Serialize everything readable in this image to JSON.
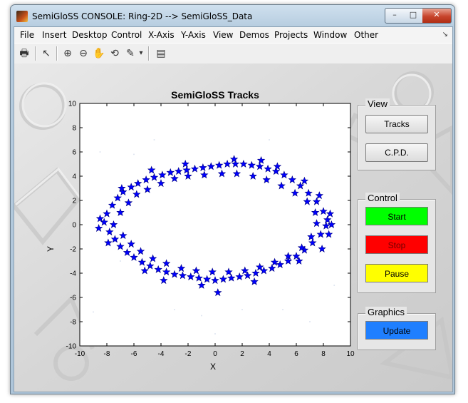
{
  "window": {
    "title": "SemiGloSS CONSOLE: Ring-2D --> SemiGloSS_Data",
    "min_label": "–",
    "max_label": "□",
    "close_label": "✕"
  },
  "menu": [
    "File",
    "Insert",
    "Desktop",
    "Control",
    "X-Axis",
    "Y-Axis",
    "View",
    "Demos",
    "Projects",
    "Window",
    "Other"
  ],
  "menu_corner": "↘",
  "toolbar": {
    "icons": [
      "print-icon",
      "pointer-icon",
      "zoom-in-icon",
      "zoom-out-icon",
      "pan-hand-icon",
      "rotate-3d-icon",
      "data-brush-icon",
      "dropdown-arrow-icon",
      "plot-tools-icon"
    ],
    "glyphs": [
      "🖶",
      "↖",
      "⊕",
      "⊖",
      "✋",
      "⟲",
      "✎",
      "▾",
      "▤"
    ]
  },
  "plot": {
    "title": "SemiGloSS Tracks",
    "xlabel": "X",
    "ylabel": "Y"
  },
  "chart_data": {
    "type": "scatter",
    "title": "SemiGloSS Tracks",
    "xlabel": "X",
    "ylabel": "Y",
    "xlim": [
      -10,
      10
    ],
    "ylim": [
      -10,
      10
    ],
    "xticks": [
      "-10",
      "-8",
      "-6",
      "-4",
      "-2",
      "0",
      "2",
      "4",
      "6",
      "8",
      "10"
    ],
    "yticks": [
      "10",
      "8",
      "6",
      "4",
      "2",
      "0",
      "-2",
      "-4",
      "-6",
      "-8",
      "-10"
    ],
    "grid": false,
    "marker_color": "#0000ff",
    "series": [
      {
        "marker": "star",
        "points": [
          [
            -8.2,
            0.2
          ],
          [
            -8.0,
            0.9
          ],
          [
            -7.8,
            -0.6
          ],
          [
            -7.6,
            1.6
          ],
          [
            -7.4,
            -1.2
          ],
          [
            -7.2,
            2.2
          ],
          [
            -7.0,
            -1.8
          ],
          [
            -6.8,
            2.7
          ],
          [
            -6.5,
            -2.3
          ],
          [
            -6.2,
            3.1
          ],
          [
            -6.0,
            -2.7
          ],
          [
            -5.7,
            3.4
          ],
          [
            -5.4,
            -3.1
          ],
          [
            -5.1,
            3.7
          ],
          [
            -4.8,
            -3.4
          ],
          [
            -4.5,
            3.9
          ],
          [
            -4.2,
            -3.7
          ],
          [
            -3.9,
            4.1
          ],
          [
            -3.6,
            -3.9
          ],
          [
            -3.3,
            4.3
          ],
          [
            -3.0,
            -4.1
          ],
          [
            -2.7,
            4.4
          ],
          [
            -2.4,
            -4.2
          ],
          [
            -2.1,
            4.5
          ],
          [
            -1.8,
            -4.3
          ],
          [
            -1.5,
            4.6
          ],
          [
            -1.2,
            -4.4
          ],
          [
            -0.9,
            4.7
          ],
          [
            -0.6,
            -4.5
          ],
          [
            -0.3,
            4.8
          ],
          [
            0.0,
            -4.6
          ],
          [
            0.3,
            4.9
          ],
          [
            0.6,
            -4.5
          ],
          [
            0.9,
            5.0
          ],
          [
            1.2,
            -4.4
          ],
          [
            1.5,
            5.0
          ],
          [
            1.8,
            -4.3
          ],
          [
            2.1,
            5.0
          ],
          [
            2.4,
            -4.2
          ],
          [
            2.7,
            4.9
          ],
          [
            3.0,
            -4.0
          ],
          [
            3.3,
            4.8
          ],
          [
            3.6,
            -3.8
          ],
          [
            3.9,
            4.6
          ],
          [
            4.2,
            -3.6
          ],
          [
            4.5,
            4.4
          ],
          [
            4.8,
            -3.3
          ],
          [
            5.1,
            4.1
          ],
          [
            5.4,
            -3.0
          ],
          [
            5.7,
            3.7
          ],
          [
            6.0,
            -2.6
          ],
          [
            6.3,
            3.2
          ],
          [
            6.6,
            -2.1
          ],
          [
            6.9,
            2.6
          ],
          [
            7.2,
            -1.5
          ],
          [
            7.5,
            1.9
          ],
          [
            7.8,
            -0.8
          ],
          [
            8.0,
            1.1
          ],
          [
            8.2,
            -0.1
          ],
          [
            8.3,
            0.4
          ],
          [
            -7.5,
            0.0
          ],
          [
            -7.0,
            1.0
          ],
          [
            -6.8,
            -0.9
          ],
          [
            -6.4,
            1.8
          ],
          [
            -6.2,
            -1.6
          ],
          [
            -5.8,
            2.5
          ],
          [
            -5.5,
            -2.2
          ],
          [
            -5.0,
            2.9
          ],
          [
            -4.6,
            -2.8
          ],
          [
            -4.0,
            3.4
          ],
          [
            -3.6,
            -3.2
          ],
          [
            -3.0,
            3.8
          ],
          [
            -2.5,
            -3.6
          ],
          [
            -2.0,
            4.0
          ],
          [
            -1.4,
            -3.8
          ],
          [
            -0.8,
            4.1
          ],
          [
            -0.2,
            -3.9
          ],
          [
            0.5,
            4.2
          ],
          [
            1.0,
            -3.9
          ],
          [
            1.6,
            4.2
          ],
          [
            2.2,
            -3.8
          ],
          [
            2.8,
            4.0
          ],
          [
            3.3,
            -3.5
          ],
          [
            3.8,
            3.7
          ],
          [
            4.4,
            -3.1
          ],
          [
            4.9,
            3.2
          ],
          [
            5.4,
            -2.6
          ],
          [
            5.9,
            2.6
          ],
          [
            6.4,
            -1.9
          ],
          [
            6.8,
            1.9
          ],
          [
            7.1,
            -1.0
          ],
          [
            7.4,
            1.0
          ],
          [
            7.5,
            0.1
          ],
          [
            -8.5,
            0.5
          ],
          [
            -8.6,
            -0.3
          ],
          [
            8.6,
            0.0
          ],
          [
            8.4,
            -0.8
          ],
          [
            8.5,
            0.9
          ],
          [
            -6.9,
            3.0
          ],
          [
            -5.2,
            -3.8
          ],
          [
            -2.2,
            5.0
          ],
          [
            -1.0,
            -5.0
          ],
          [
            1.4,
            5.4
          ],
          [
            2.9,
            -4.7
          ],
          [
            4.6,
            4.8
          ],
          [
            6.2,
            -3.0
          ],
          [
            7.7,
            2.4
          ],
          [
            6.6,
            3.6
          ],
          [
            -3.8,
            -4.6
          ],
          [
            -4.7,
            4.5
          ],
          [
            0.2,
            -5.6
          ],
          [
            3.4,
            5.3
          ],
          [
            -7.9,
            -1.5
          ],
          [
            7.9,
            -2.0
          ]
        ]
      }
    ]
  },
  "panels": {
    "view": {
      "title": "View",
      "tracks_label": "Tracks",
      "cpd_label": "C.P.D."
    },
    "control": {
      "title": "Control",
      "start_label": "Start",
      "stop_label": "Stop",
      "pause_label": "Pause"
    },
    "graphics": {
      "title": "Graphics",
      "update_label": "Update"
    }
  }
}
